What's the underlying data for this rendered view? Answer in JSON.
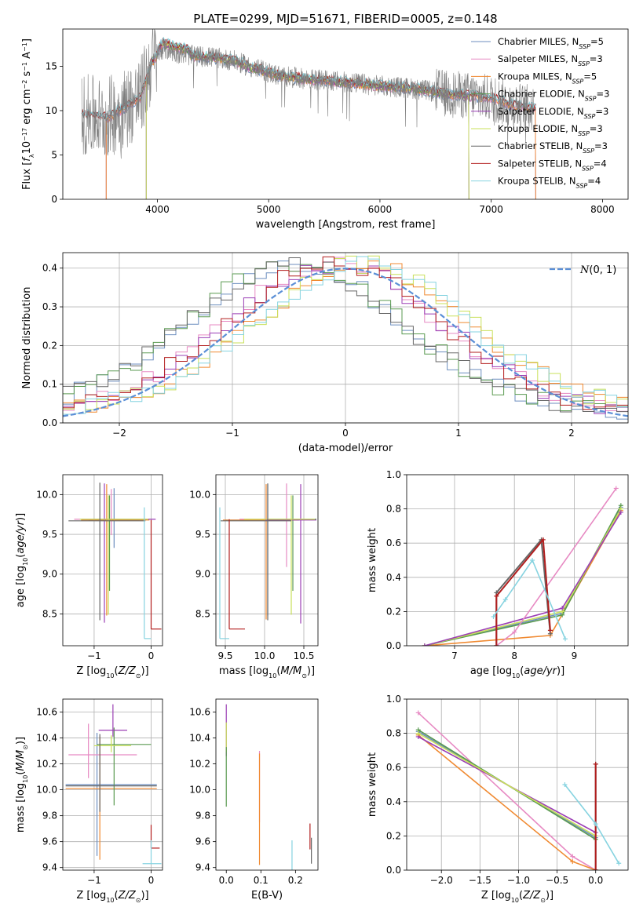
{
  "figure": {
    "title": "PLATE=0299, MJD=51671, FIBERID=0005, z=0.148"
  },
  "colors": {
    "chabrier_miles": "#6c8ebf",
    "salpeter_miles": "#e78ac3",
    "kroupa_miles": "#f08a32",
    "chabrier_elodie": "#5a9a50",
    "salpeter_elodie": "#9b3fb5",
    "kroupa_elodie": "#c9e05a",
    "chabrier_stelib": "#666666",
    "salpeter_stelib": "#b21e1e",
    "kroupa_stelib": "#86d3e0",
    "spectrum": "#7f7f7f",
    "normal": "#5b8fd6",
    "grid": "#b0b0b0"
  },
  "chart_data": [
    {
      "id": "spectrum",
      "type": "line",
      "title": "PLATE=0299, MJD=51671, FIBERID=0005, z=0.148",
      "xlabel": "wavelength [Angstrom, rest frame]",
      "ylabel": "Flux [fλ10⁻¹⁷ erg cm⁻² s⁻¹ A⁻¹]",
      "xlim": [
        3150,
        8230
      ],
      "ylim": [
        0,
        19.2
      ],
      "xticks": [
        4000,
        5000,
        6000,
        7000,
        8000
      ],
      "yticks": [
        0,
        5,
        10,
        15
      ],
      "grid": false,
      "legend": "upper-right",
      "legend_entries": [
        {
          "key": "chabrier_miles",
          "label": "Chabrier MILES, N",
          "sub": "SSP",
          "suffix": "=5"
        },
        {
          "key": "salpeter_miles",
          "label": "Salpeter MILES, N",
          "sub": "SSP",
          "suffix": "=3"
        },
        {
          "key": "kroupa_miles",
          "label": "Kroupa MILES, N",
          "sub": "SSP",
          "suffix": "=5"
        },
        {
          "key": "chabrier_elodie",
          "label": "Chabrier ELODIE, N",
          "sub": "SSP",
          "suffix": "=3"
        },
        {
          "key": "salpeter_elodie",
          "label": "Salpeter ELODIE, N",
          "sub": "SSP",
          "suffix": "=3"
        },
        {
          "key": "kroupa_elodie",
          "label": "Kroupa ELODIE, N",
          "sub": "SSP",
          "suffix": "=3"
        },
        {
          "key": "chabrier_stelib",
          "label": "Chabrier STELIB, N",
          "sub": "SSP",
          "suffix": "=3"
        },
        {
          "key": "salpeter_stelib",
          "label": "Salpeter STELIB, N",
          "sub": "SSP",
          "suffix": "=4"
        },
        {
          "key": "kroupa_stelib",
          "label": "Kroupa STELIB, N",
          "sub": "SSP",
          "suffix": "=4"
        }
      ],
      "continuum": {
        "x": [
          3320,
          3450,
          3550,
          3700,
          3850,
          3950,
          4050,
          4150,
          4300,
          4500,
          4700,
          4850,
          4950,
          5100,
          5400,
          5700,
          6000,
          6300,
          6600,
          6800,
          7000,
          7200,
          7400
        ],
        "y": [
          9.5,
          9.3,
          9.2,
          10.3,
          11.5,
          15.5,
          17.0,
          16.6,
          16.2,
          16.0,
          15.6,
          14.8,
          14.5,
          13.9,
          13.5,
          13.2,
          12.8,
          12.5,
          11.9,
          11.7,
          11.4,
          10.6,
          10.2
        ]
      }
    },
    {
      "id": "residuals",
      "type": "histogram",
      "xlabel": "(data-model)/error",
      "ylabel": "Normed distribution",
      "xlim": [
        -2.5,
        2.5
      ],
      "ylim": [
        0,
        0.44
      ],
      "xticks": [
        -2,
        -1,
        0,
        1,
        2
      ],
      "yticks": [
        0.0,
        0.1,
        0.2,
        0.3,
        0.4
      ],
      "grid": true,
      "legend": "upper-right",
      "normal_label": "N(0, 1)",
      "bin_width": 0.1
    },
    {
      "id": "age_vs_Z",
      "type": "errorbar",
      "xlabel": "Z [log10(Z/Z⊙)]",
      "ylabel": "age  [log10(age/yr)]",
      "xlim": [
        -1.55,
        0.2
      ],
      "ylim": [
        8.1,
        10.25
      ],
      "xticks": [
        -1,
        0
      ],
      "yticks": [
        8.5,
        9.0,
        9.5,
        10.0
      ],
      "grid": true,
      "points": [
        {
          "key": "chabrier_miles",
          "x": -0.65,
          "y": 9.68,
          "xerr": [
            0.45,
            0.45
          ],
          "yerr": [
            0.35,
            0.4
          ]
        },
        {
          "key": "salpeter_miles",
          "x": -0.7,
          "y": 9.69,
          "xerr": [
            0.65,
            0.55
          ],
          "yerr": [
            0.2,
            0.38
          ]
        },
        {
          "key": "kroupa_miles",
          "x": -0.78,
          "y": 9.68,
          "xerr": [
            0.45,
            0.75
          ],
          "yerr": [
            1.2,
            0.45
          ]
        },
        {
          "key": "chabrier_elodie",
          "x": -0.73,
          "y": 9.69,
          "xerr": [
            0.35,
            0.65
          ],
          "yerr": [
            0.9,
            0.3
          ]
        },
        {
          "key": "salpeter_elodie",
          "x": -0.82,
          "y": 9.69,
          "xerr": [
            0.4,
            0.9
          ],
          "yerr": [
            1.3,
            0.45
          ]
        },
        {
          "key": "kroupa_elodie",
          "x": -0.75,
          "y": 9.69,
          "xerr": [
            0.5,
            0.7
          ],
          "yerr": [
            1.2,
            0.3
          ]
        },
        {
          "key": "chabrier_stelib",
          "x": -0.9,
          "y": 9.67,
          "xerr": [
            0.55,
            0.8
          ],
          "yerr": [
            1.25,
            0.48
          ]
        },
        {
          "key": "salpeter_stelib",
          "x": 0.0,
          "y": 8.31,
          "xerr": [
            0.0,
            0.18
          ],
          "yerr": [
            0.0,
            1.37
          ]
        },
        {
          "key": "kroupa_stelib",
          "x": -0.12,
          "y": 8.19,
          "xerr": [
            0.0,
            0.12
          ],
          "yerr": [
            0.0,
            1.65
          ]
        }
      ]
    },
    {
      "id": "age_vs_mass",
      "type": "errorbar",
      "xlabel": "mass [log10(M/M⊙)]",
      "ylabel": "",
      "xlim": [
        9.38,
        10.68
      ],
      "ylim": [
        8.1,
        10.25
      ],
      "xticks": [
        9.5,
        10.0,
        10.5
      ],
      "yticks": [
        8.5,
        9.0,
        9.5,
        10.0
      ],
      "grid": true,
      "points": [
        {
          "key": "chabrier_miles",
          "x": 10.04,
          "y": 9.68,
          "xerr": [
            0.55,
            0.4
          ],
          "yerr": [
            1.2,
            0.45
          ]
        },
        {
          "key": "salpeter_miles",
          "x": 10.28,
          "y": 9.69,
          "xerr": [
            0.6,
            0.35
          ],
          "yerr": [
            0.6,
            0.45
          ]
        },
        {
          "key": "kroupa_miles",
          "x": 10.02,
          "y": 9.68,
          "xerr": [
            0.55,
            0.4
          ],
          "yerr": [
            1.25,
            0.45
          ]
        },
        {
          "key": "chabrier_elodie",
          "x": 10.36,
          "y": 9.69,
          "xerr": [
            0.3,
            0.3
          ],
          "yerr": [
            0.9,
            0.3
          ]
        },
        {
          "key": "salpeter_elodie",
          "x": 10.46,
          "y": 9.68,
          "xerr": [
            0.45,
            0.2
          ],
          "yerr": [
            1.3,
            0.45
          ]
        },
        {
          "key": "kroupa_elodie",
          "x": 10.34,
          "y": 9.69,
          "xerr": [
            0.6,
            0.3
          ],
          "yerr": [
            1.2,
            0.3
          ]
        },
        {
          "key": "chabrier_stelib",
          "x": 10.04,
          "y": 9.67,
          "xerr": [
            0.6,
            0.3
          ],
          "yerr": [
            1.25,
            0.47
          ]
        },
        {
          "key": "salpeter_stelib",
          "x": 9.55,
          "y": 8.31,
          "xerr": [
            0.0,
            0.2
          ],
          "yerr": [
            0.0,
            1.38
          ]
        },
        {
          "key": "kroupa_stelib",
          "x": 9.43,
          "y": 8.19,
          "xerr": [
            0.0,
            0.12
          ],
          "yerr": [
            0.0,
            1.65
          ]
        }
      ]
    },
    {
      "id": "weight_vs_age",
      "type": "line",
      "xlabel": "age  [log10(age/yr)]",
      "ylabel": "mass weight",
      "xlim": [
        6.2,
        9.9
      ],
      "ylim": [
        0,
        1.0
      ],
      "xticks": [
        7,
        8,
        9
      ],
      "yticks": [
        0.0,
        0.2,
        0.4,
        0.6,
        0.8,
        1.0
      ],
      "grid": true,
      "series": [
        {
          "key": "chabrier_miles",
          "x": [
            6.5,
            8.8,
            9.78
          ],
          "y": [
            0.0,
            0.19,
            0.81
          ]
        },
        {
          "key": "kroupa_miles",
          "x": [
            6.5,
            8.6,
            9.78
          ],
          "y": [
            0.0,
            0.06,
            0.79
          ]
        },
        {
          "key": "chabrier_elodie",
          "x": [
            6.5,
            8.8,
            9.78
          ],
          "y": [
            0.0,
            0.18,
            0.82
          ]
        },
        {
          "key": "kroupa_elodie",
          "x": [
            6.5,
            8.8,
            9.78
          ],
          "y": [
            0.0,
            0.2,
            0.8
          ]
        },
        {
          "key": "salpeter_elodie",
          "x": [
            6.5,
            8.8,
            9.78
          ],
          "y": [
            0.0,
            0.22,
            0.78
          ]
        },
        {
          "key": "salpeter_miles",
          "x": [
            7.7,
            8.0,
            9.7
          ],
          "y": [
            0.0,
            0.08,
            0.92
          ]
        },
        {
          "key": "chabrier_stelib",
          "x": [
            7.7,
            7.7,
            8.45,
            8.6
          ],
          "y": [
            0.0,
            0.31,
            0.62,
            0.07
          ]
        },
        {
          "key": "salpeter_stelib",
          "x": [
            7.7,
            7.7,
            8.48,
            8.6
          ],
          "y": [
            0.0,
            0.29,
            0.62,
            0.09
          ]
        },
        {
          "key": "kroupa_stelib",
          "x": [
            7.65,
            7.85,
            8.3,
            8.85
          ],
          "y": [
            0.17,
            0.27,
            0.5,
            0.04
          ]
        }
      ]
    },
    {
      "id": "mass_vs_Z",
      "type": "errorbar",
      "xlabel": "Z [log10(Z/Z⊙)]",
      "ylabel": "mass [log10(M/M⊙)]",
      "xlim": [
        -1.55,
        0.2
      ],
      "ylim": [
        9.38,
        10.7
      ],
      "xticks": [
        -1,
        0
      ],
      "yticks": [
        9.4,
        9.6,
        9.8,
        10.0,
        10.2,
        10.4,
        10.6
      ],
      "grid": true,
      "points": [
        {
          "key": "chabrier_miles",
          "x": -0.95,
          "y": 10.04,
          "xerr": [
            0.55,
            1.05
          ],
          "yerr": [
            0.55,
            0.4
          ]
        },
        {
          "key": "salpeter_miles",
          "x": -1.1,
          "y": 10.27,
          "xerr": [
            0.35,
            0.85
          ],
          "yerr": [
            0.18,
            0.24
          ]
        },
        {
          "key": "kroupa_miles",
          "x": -0.9,
          "y": 10.01,
          "xerr": [
            0.6,
            1.0
          ],
          "yerr": [
            0.55,
            0.4
          ]
        },
        {
          "key": "chabrier_elodie",
          "x": -0.65,
          "y": 10.35,
          "xerr": [
            0.3,
            0.65
          ],
          "yerr": [
            0.47,
            0.13
          ]
        },
        {
          "key": "salpeter_elodie",
          "x": -0.67,
          "y": 10.46,
          "xerr": [
            0.25,
            0.25
          ],
          "yerr": [
            0.05,
            0.2
          ]
        },
        {
          "key": "kroupa_elodie",
          "x": -0.7,
          "y": 10.34,
          "xerr": [
            0.3,
            0.35
          ],
          "yerr": [
            0.05,
            0.08
          ]
        },
        {
          "key": "chabrier_stelib",
          "x": -0.9,
          "y": 10.03,
          "xerr": [
            0.6,
            1.0
          ],
          "yerr": [
            0.2,
            0.4
          ]
        },
        {
          "key": "salpeter_stelib",
          "x": 0.0,
          "y": 9.55,
          "xerr": [
            0.0,
            0.15
          ],
          "yerr": [
            0.0,
            0.18
          ]
        },
        {
          "key": "kroupa_stelib",
          "x": 0.0,
          "y": 9.43,
          "xerr": [
            0.15,
            0.18
          ],
          "yerr": [
            0.0,
            0.18
          ]
        }
      ]
    },
    {
      "id": "mass_vs_EBV",
      "type": "errorbar",
      "xlabel": "E(B-V)",
      "ylabel": "",
      "xlim": [
        -0.03,
        0.265
      ],
      "ylim": [
        9.38,
        10.7
      ],
      "xticks": [
        0.0,
        0.1,
        0.2
      ],
      "yticks": [
        9.4,
        9.6,
        9.8,
        10.0,
        10.2,
        10.4,
        10.6
      ],
      "grid": false,
      "points": [
        {
          "key": "salpeter_elodie",
          "x": 0.0,
          "y": 10.46,
          "xerr": [
            0,
            0
          ],
          "yerr": [
            0.2,
            0.2
          ]
        },
        {
          "key": "kroupa_elodie",
          "x": 0.0,
          "y": 10.34,
          "xerr": [
            0,
            0
          ],
          "yerr": [
            0.05,
            0.18
          ]
        },
        {
          "key": "chabrier_elodie",
          "x": 0.0,
          "y": 10.1,
          "xerr": [
            0,
            0
          ],
          "yerr": [
            0.23,
            0.23
          ]
        },
        {
          "key": "salpeter_miles",
          "x": 0.096,
          "y": 10.1,
          "xerr": [
            0,
            0
          ],
          "yerr": [
            0.35,
            0.2
          ]
        },
        {
          "key": "kroupa_miles",
          "x": 0.096,
          "y": 9.85,
          "xerr": [
            0,
            0
          ],
          "yerr": [
            0.43,
            0.43
          ]
        },
        {
          "key": "kroupa_stelib",
          "x": 0.19,
          "y": 9.48,
          "xerr": [
            0,
            0
          ],
          "yerr": [
            0.1,
            0.13
          ]
        },
        {
          "key": "salpeter_stelib",
          "x": 0.242,
          "y": 9.6,
          "xerr": [
            0,
            0
          ],
          "yerr": [
            0.06,
            0.14
          ]
        },
        {
          "key": "chabrier_stelib",
          "x": 0.246,
          "y": 9.53,
          "xerr": [
            0,
            0
          ],
          "yerr": [
            0.1,
            0.1
          ]
        }
      ]
    },
    {
      "id": "weight_vs_Z",
      "type": "line",
      "xlabel": "Z [log10(Z/Z⊙)]",
      "ylabel": "mass weight",
      "xlim": [
        -2.45,
        0.42
      ],
      "ylim": [
        0,
        1.0
      ],
      "xticks": [
        -2.0,
        -1.5,
        -1.0,
        -0.5,
        0.0
      ],
      "yticks": [
        0.0,
        0.2,
        0.4,
        0.6,
        0.8,
        1.0
      ],
      "grid": true,
      "series": [
        {
          "key": "chabrier_miles",
          "x": [
            -2.3,
            0.0
          ],
          "y": [
            0.81,
            0.19
          ]
        },
        {
          "key": "salpeter_miles",
          "x": [
            -2.3,
            -0.3,
            0.0
          ],
          "y": [
            0.92,
            0.08,
            0.0
          ]
        },
        {
          "key": "kroupa_miles",
          "x": [
            -2.3,
            -0.3,
            0.0
          ],
          "y": [
            0.79,
            0.05,
            0.0
          ]
        },
        {
          "key": "chabrier_elodie",
          "x": [
            -2.3,
            0.0
          ],
          "y": [
            0.82,
            0.18
          ]
        },
        {
          "key": "salpeter_elodie",
          "x": [
            -2.3,
            0.0
          ],
          "y": [
            0.78,
            0.22
          ]
        },
        {
          "key": "kroupa_elodie",
          "x": [
            -2.3,
            0.0
          ],
          "y": [
            0.8,
            0.2
          ]
        },
        {
          "key": "chabrier_stelib",
          "x": [
            0.0,
            0.0
          ],
          "y": [
            0.0,
            0.62
          ]
        },
        {
          "key": "salpeter_stelib",
          "x": [
            0.0,
            0.0
          ],
          "y": [
            0.0,
            0.62
          ]
        },
        {
          "key": "kroupa_stelib",
          "x": [
            -0.4,
            0.0,
            0.3
          ],
          "y": [
            0.5,
            0.27,
            0.04
          ]
        }
      ]
    }
  ]
}
